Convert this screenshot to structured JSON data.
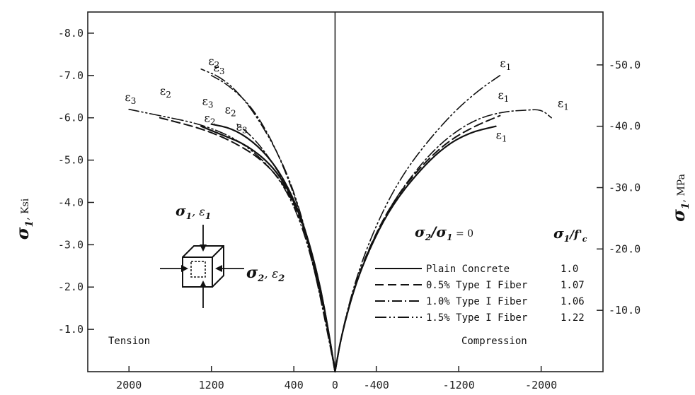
{
  "chart_data": {
    "type": "line",
    "x_axis": {
      "ticks": [
        {
          "v": 2000,
          "label": "2000"
        },
        {
          "v": 1200,
          "label": "1200"
        },
        {
          "v": 400,
          "label": "400"
        },
        {
          "v": 0,
          "label": "0"
        },
        {
          "v": -400,
          "label": "-400"
        },
        {
          "v": -1200,
          "label": "-1200"
        },
        {
          "v": -2000,
          "label": "-2000"
        }
      ],
      "range": [
        2400,
        -2600
      ]
    },
    "y_left": {
      "label_main": "σ",
      "label_sub": "1",
      "label_unit": ", Ksi",
      "ticks": [
        {
          "v": -8.0,
          "label": "-8.0"
        },
        {
          "v": -7.0,
          "label": "-7.0"
        },
        {
          "v": -6.0,
          "label": "-6.0"
        },
        {
          "v": -5.0,
          "label": "-5.0"
        },
        {
          "v": -4.0,
          "label": "-4.0"
        },
        {
          "v": -3.0,
          "label": "-3.0"
        },
        {
          "v": -2.0,
          "label": "-2.0"
        },
        {
          "v": -1.0,
          "label": "-1.0"
        }
      ],
      "range": [
        0,
        -8.5
      ]
    },
    "y_right": {
      "label_main": "σ",
      "label_sub": "1",
      "label_unit": ", MPa",
      "ticks": [
        {
          "v": -50,
          "label": "-50.0"
        },
        {
          "v": -40,
          "label": "-40.0"
        },
        {
          "v": -30,
          "label": "-30.0"
        },
        {
          "v": -20,
          "label": "-20.0"
        },
        {
          "v": -10,
          "label": "-10.0"
        }
      ],
      "ksi_per_mpa": 0.145
    },
    "region_labels": {
      "tension": "Tension",
      "compression": "Compression"
    },
    "ratio_label": {
      "main": "σ",
      "sub1": "2",
      "slash": "/σ",
      "sub2": "1",
      "eq": " = 0"
    },
    "ratio_header": {
      "main": "σ",
      "sub": "1",
      "rest": "/f'",
      "sub2": "c"
    },
    "legend": [
      {
        "name": "Plain Concrete",
        "ratio": "1.0",
        "dash": ""
      },
      {
        "name": "0.5% Type I Fiber",
        "ratio": "1.07",
        "dash": "12,6"
      },
      {
        "name": "1.0% Type I Fiber",
        "ratio": "1.06",
        "dash": "14,4,2,4"
      },
      {
        "name": "1.5% Type I Fiber",
        "ratio": "1.22",
        "dash": "16,4,2,4,2,4"
      }
    ],
    "series": [
      {
        "dash": "",
        "width": 2.2,
        "segments": [
          [
            [
              0,
              0
            ],
            [
              60,
              -0.9
            ],
            [
              150,
              -2.1
            ],
            [
              280,
              -3.3
            ],
            [
              420,
              -4.2
            ],
            [
              600,
              -4.95
            ],
            [
              800,
              -5.45
            ],
            [
              1000,
              -5.75
            ],
            [
              1200,
              -5.85
            ]
          ],
          [
            [
              0,
              0
            ],
            [
              60,
              -0.9
            ],
            [
              150,
              -2.1
            ],
            [
              280,
              -3.3
            ],
            [
              420,
              -4.15
            ],
            [
              600,
              -4.85
            ],
            [
              850,
              -5.35
            ],
            [
              1100,
              -5.6
            ],
            [
              1300,
              -5.8
            ]
          ],
          [
            [
              0,
              0
            ],
            [
              -60,
              -0.85
            ],
            [
              -200,
              -2.1
            ],
            [
              -380,
              -3.15
            ],
            [
              -560,
              -3.95
            ],
            [
              -800,
              -4.7
            ],
            [
              -1050,
              -5.3
            ],
            [
              -1300,
              -5.65
            ],
            [
              -1560,
              -5.8
            ]
          ]
        ],
        "labels": [
          {
            "x": 1270,
            "y": -5.9,
            "t": "ε",
            "s": "2"
          },
          {
            "x": 1290,
            "y": -6.3,
            "t": "ε",
            "s": "3"
          },
          {
            "x": -1560,
            "y": -5.5,
            "t": "ε",
            "s": "1"
          }
        ]
      },
      {
        "dash": "12,6",
        "width": 2.0,
        "segments": [
          [
            [
              0,
              0
            ],
            [
              70,
              -1.0
            ],
            [
              170,
              -2.2
            ],
            [
              300,
              -3.4
            ],
            [
              470,
              -4.35
            ],
            [
              700,
              -5.0
            ],
            [
              1000,
              -5.45
            ],
            [
              1300,
              -5.75
            ],
            [
              1700,
              -6.0
            ]
          ],
          [
            [
              0,
              0
            ],
            [
              -70,
              -0.95
            ],
            [
              -210,
              -2.2
            ],
            [
              -400,
              -3.3
            ],
            [
              -600,
              -4.15
            ],
            [
              -850,
              -4.9
            ],
            [
              -1100,
              -5.45
            ],
            [
              -1350,
              -5.8
            ],
            [
              -1600,
              -6.05
            ]
          ]
        ],
        "labels": [
          {
            "x": 1700,
            "y": -6.55,
            "t": "ε",
            "s": "2"
          },
          {
            "x": -1580,
            "y": -6.45,
            "t": "ε",
            "s": "1"
          }
        ]
      },
      {
        "dash": "14,4,2,4",
        "width": 1.6,
        "segments": [
          [
            [
              0,
              0
            ],
            [
              80,
              -1.1
            ],
            [
              200,
              -2.5
            ],
            [
              330,
              -3.7
            ],
            [
              460,
              -4.6
            ],
            [
              620,
              -5.5
            ],
            [
              820,
              -6.3
            ],
            [
              1050,
              -6.8
            ],
            [
              1200,
              -7.0
            ]
          ],
          [
            [
              0,
              0
            ],
            [
              80,
              -1.0
            ],
            [
              190,
              -2.3
            ],
            [
              310,
              -3.5
            ],
            [
              450,
              -4.3
            ],
            [
              620,
              -5.0
            ],
            [
              800,
              -5.55
            ],
            [
              950,
              -5.85
            ]
          ],
          [
            [
              0,
              0
            ],
            [
              -70,
              -0.95
            ],
            [
              -220,
              -2.25
            ],
            [
              -420,
              -3.4
            ],
            [
              -640,
              -4.3
            ],
            [
              -900,
              -5.1
            ],
            [
              -1150,
              -5.65
            ],
            [
              -1400,
              -6.0
            ],
            [
              -1650,
              -6.15
            ],
            [
              -1850,
              -6.18
            ],
            [
              -2000,
              -6.2
            ],
            [
              -2100,
              -6.0
            ]
          ]
        ],
        "labels": [
          {
            "x": 1180,
            "y": -7.1,
            "t": "ε",
            "s": "3"
          },
          {
            "x": 960,
            "y": -5.7,
            "t": "ε",
            "s": "3"
          },
          {
            "x": -2160,
            "y": -6.25,
            "t": "ε",
            "s": "1"
          }
        ]
      },
      {
        "dash": "16,4,2,4,2,4",
        "width": 1.6,
        "segments": [
          [
            [
              0,
              0
            ],
            [
              70,
              -1.0
            ],
            [
              180,
              -2.2
            ],
            [
              300,
              -3.3
            ],
            [
              450,
              -4.2
            ],
            [
              650,
              -4.9
            ],
            [
              950,
              -5.5
            ],
            [
              1300,
              -5.85
            ],
            [
              1700,
              -6.05
            ],
            [
              2000,
              -6.2
            ]
          ],
          [
            [
              0,
              0
            ],
            [
              85,
              -1.2
            ],
            [
              210,
              -2.6
            ],
            [
              350,
              -3.9
            ],
            [
              500,
              -4.9
            ],
            [
              700,
              -5.8
            ],
            [
              900,
              -6.5
            ],
            [
              1100,
              -6.95
            ],
            [
              1300,
              -7.15
            ]
          ],
          [
            [
              0,
              0
            ],
            [
              -80,
              -1.1
            ],
            [
              -240,
              -2.5
            ],
            [
              -450,
              -3.75
            ],
            [
              -680,
              -4.75
            ],
            [
              -950,
              -5.6
            ],
            [
              -1200,
              -6.25
            ],
            [
              -1420,
              -6.7
            ],
            [
              -1600,
              -7.0
            ]
          ]
        ],
        "labels": [
          {
            "x": 2040,
            "y": -6.4,
            "t": "ε",
            "s": "3"
          },
          {
            "x": 1230,
            "y": -7.25,
            "t": "ε",
            "s": "2"
          },
          {
            "x": 1070,
            "y": -6.1,
            "t": "ε",
            "s": "2"
          },
          {
            "x": -1600,
            "y": -7.2,
            "t": "ε",
            "s": "1"
          }
        ]
      }
    ]
  },
  "inset": {
    "top_label": "σ",
    "top_sub1": "1",
    "top_sep": ", ε",
    "top_sub2": "1",
    "side_label": "σ",
    "side_sub1": "2",
    "side_sep": ", ε",
    "side_sub2": "2"
  }
}
